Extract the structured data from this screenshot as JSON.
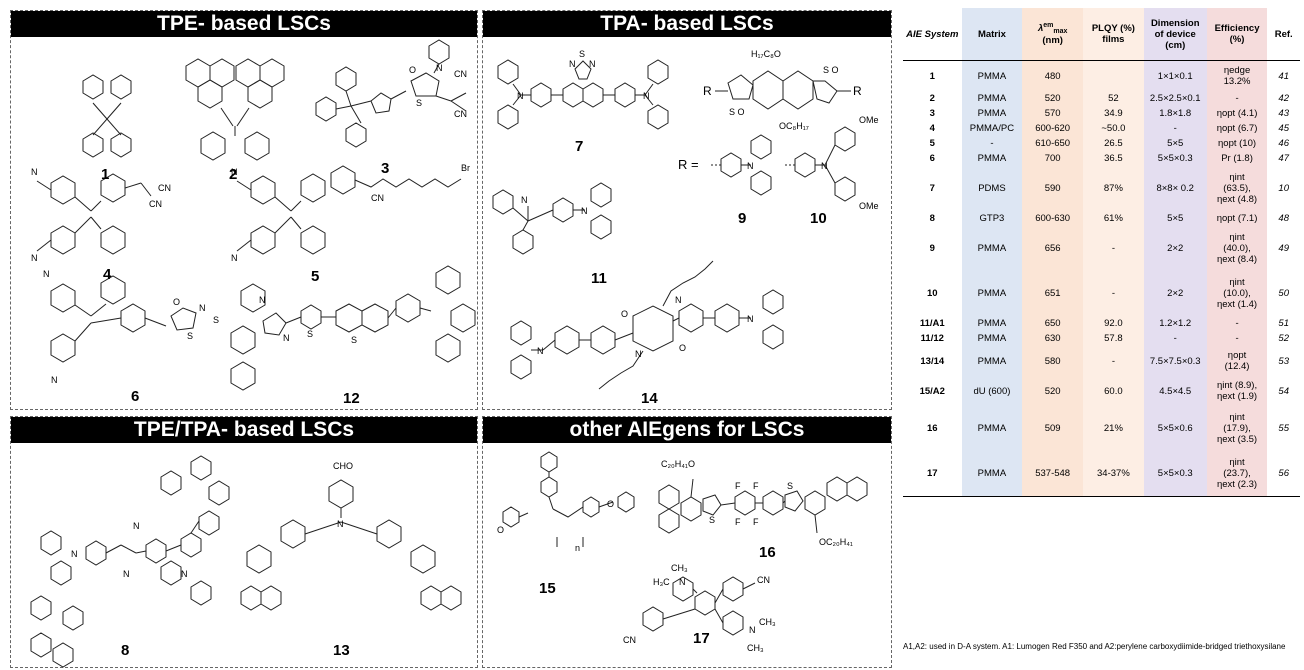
{
  "panels": {
    "tpe_title": "TPE- based LSCs",
    "tpa_title": "TPA- based LSCs",
    "tpe_tpa_title": "TPE/TPA- based LSCs",
    "other_title": "other AIEgens for LSCs"
  },
  "compound_labels": [
    "1",
    "2",
    "3",
    "4",
    "5",
    "6",
    "7",
    "8",
    "9",
    "10",
    "11",
    "12",
    "13",
    "14",
    "15",
    "16",
    "17"
  ],
  "atoms": {
    "CN": "CN",
    "N": "N",
    "S": "S",
    "O": "O",
    "Br": "Br",
    "CHO": "CHO",
    "R_eq": "R =",
    "R": "R",
    "OMe": "OMe",
    "H17C8O": "H₁₇C₈O",
    "OC8H17": "OC₈H₁₇",
    "C20H41O": "C₂₀H₄₁O",
    "OC20H41": "OC₂₀H₄₁",
    "CH3": "CH₃",
    "H3C": "H₃C",
    "n": "n",
    "F": "F",
    "SO": "S O"
  },
  "table": {
    "headers": {
      "system": "AIE System",
      "matrix": "Matrix",
      "lambda": "λ",
      "lambda_sup": "em",
      "lambda_sub": "max",
      "lambda_unit": "(nm)",
      "plqy": "PLQY (%) films",
      "dimension": "Dimension of device (cm)",
      "efficiency": "Efficiency (%)",
      "ref": "Ref."
    },
    "rows": [
      {
        "system": "1",
        "matrix": "PMMA",
        "lambda": "480",
        "plqy": "",
        "dim": "1×1×0.1",
        "eff": [
          "ηedge",
          "13.2%"
        ],
        "ref": "41"
      },
      {
        "system": "2",
        "matrix": "PMMA",
        "lambda": "520",
        "plqy": "52",
        "dim": "2.5×2.5×0.1",
        "eff": [
          "-"
        ],
        "ref": "42"
      },
      {
        "system": "3",
        "matrix": "PMMA",
        "lambda": "570",
        "plqy": "34.9",
        "dim": "1.8×1.8",
        "eff": [
          "ηopt (4.1)"
        ],
        "ref": "43"
      },
      {
        "system": "4",
        "matrix": "PMMA/PC",
        "lambda": "600-620",
        "plqy": "~50.0",
        "dim": "-",
        "eff": [
          "ηopt (6.7)"
        ],
        "ref": "45"
      },
      {
        "system": "5",
        "matrix": "-",
        "lambda": "610-650",
        "plqy": "26.5",
        "dim": "5×5",
        "eff": [
          "ηopt (10)"
        ],
        "ref": "46"
      },
      {
        "system": "6",
        "matrix": "PMMA",
        "lambda": "700",
        "plqy": "36.5",
        "dim": "5×5×0.3",
        "eff": [
          "Pr (1.8)"
        ],
        "ref": "47"
      },
      {
        "system": "7",
        "matrix": "PDMS",
        "lambda": "590",
        "plqy": "87%",
        "dim": "8×8× 0.2",
        "eff": [
          "ηint",
          "(63.5),",
          "ηext (4.8)"
        ],
        "ref": "10"
      },
      {
        "system": "8",
        "matrix": "GTP3",
        "lambda": "600-630",
        "plqy": "61%",
        "dim": "5×5",
        "eff": [
          "ηopt (7.1)"
        ],
        "ref": "48"
      },
      {
        "system": "9",
        "matrix": "PMMA",
        "lambda": "656",
        "plqy": "-",
        "dim": "2×2",
        "eff": [
          "ηint",
          "(40.0),",
          "ηext (8.4)"
        ],
        "ref": "49"
      },
      {
        "system": "10",
        "matrix": "PMMA",
        "lambda": "651",
        "plqy": "-",
        "dim": "2×2",
        "eff": [
          "ηint",
          "(10.0),",
          "ηext (1.4)"
        ],
        "ref": "50"
      },
      {
        "system": "11/A1",
        "matrix": "PMMA",
        "lambda": "650",
        "plqy": "92.0",
        "dim": "1.2×1.2",
        "eff": [
          "-"
        ],
        "ref": "51"
      },
      {
        "system": "11/12",
        "matrix": "PMMA",
        "lambda": "630",
        "plqy": "57.8",
        "dim": "-",
        "eff": [
          "-"
        ],
        "ref": "52"
      },
      {
        "system": "13/14",
        "matrix": "PMMA",
        "lambda": "580",
        "plqy": "-",
        "dim": "7.5×7.5×0.3",
        "eff": [
          "ηopt",
          "(12.4)"
        ],
        "ref": "53"
      },
      {
        "system": "15/A2",
        "matrix": "dU (600)",
        "lambda": "520",
        "plqy": "60.0",
        "dim": "4.5×4.5",
        "eff": [
          "ηint (8.9),",
          "ηext (1.9)"
        ],
        "ref": "54"
      },
      {
        "system": "16",
        "matrix": "PMMA",
        "lambda": "509",
        "plqy": "21%",
        "dim": "5×5×0.6",
        "eff": [
          "ηint",
          "(17.9),",
          "ηext (3.5)"
        ],
        "ref": "55"
      },
      {
        "system": "17",
        "matrix": "PMMA",
        "lambda": "537-548",
        "plqy": "34-37%",
        "dim": "5×5×0.3",
        "eff": [
          "ηint",
          "(23.7),",
          "ηext (2.3)"
        ],
        "ref": "56"
      }
    ],
    "footnote": "A1,A2: used in D-A system. A1: Lumogen Red F350 and A2:perylene carboxydiimide-bridged triethoxysilane"
  }
}
